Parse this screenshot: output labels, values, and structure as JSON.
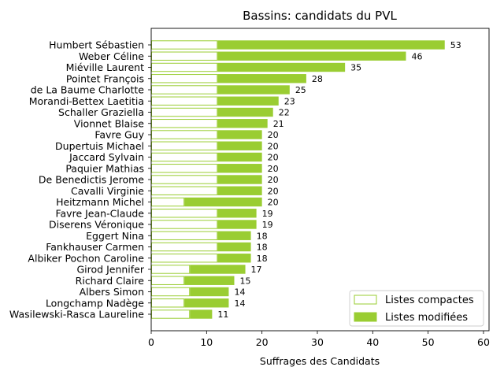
{
  "chart_data": {
    "type": "bar",
    "orientation": "horizontal",
    "stacked": true,
    "title": "Bassins: candidats du PVL",
    "xlabel": "Suffrages des Candidats",
    "ylabel": "",
    "xlim": [
      0,
      61
    ],
    "xticks": [
      0,
      10,
      20,
      30,
      40,
      50,
      60
    ],
    "grid": false,
    "legend_position": "bottom-right",
    "colors": {
      "compactes": "#9acd32",
      "modifiees": "#9acd32",
      "compactes_fill": "#ffffff"
    },
    "categories": [
      "Humbert Sébastien",
      "Weber Céline",
      "Miéville Laurent",
      "Pointet François",
      "de La Baume Charlotte",
      "Morandi-Bettex Laetitia",
      "Schaller Graziella",
      "Vionnet Blaise",
      "Favre Guy",
      "Dupertuis Michael",
      "Jaccard Sylvain",
      "Paquier Mathias",
      "De Benedictis Jerome",
      "Cavalli Virginie",
      "Heitzmann Michel",
      "Favre Jean-Claude",
      "Diserens Véronique",
      "Eggert Nina",
      "Fankhauser Carmen",
      "Albiker Pochon Caroline",
      "Girod Jennifer",
      "Richard Claire",
      "Albers Simon",
      "Longchamp Nadège",
      "Wasilewski-Rasca Laureline"
    ],
    "series": [
      {
        "name": "Listes compactes",
        "values": [
          12,
          12,
          12,
          12,
          12,
          12,
          12,
          12,
          12,
          12,
          12,
          12,
          12,
          12,
          6,
          12,
          12,
          12,
          12,
          12,
          7,
          6,
          7,
          6,
          7
        ]
      },
      {
        "name": "Listes modifiées",
        "values": [
          41,
          34,
          23,
          16,
          13,
          11,
          10,
          9,
          8,
          8,
          8,
          8,
          8,
          8,
          14,
          7,
          7,
          6,
          6,
          6,
          10,
          9,
          7,
          8,
          4
        ]
      }
    ],
    "totals": [
      53,
      46,
      35,
      28,
      25,
      23,
      22,
      21,
      20,
      20,
      20,
      20,
      20,
      20,
      20,
      19,
      19,
      18,
      18,
      18,
      17,
      15,
      14,
      14,
      11
    ]
  }
}
